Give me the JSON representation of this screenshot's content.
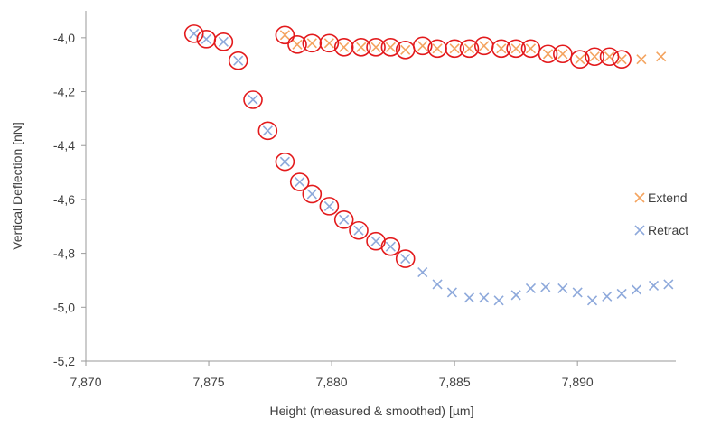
{
  "chart_data": {
    "type": "scatter",
    "xlabel": "Height (measured & smoothed) [µm]",
    "ylabel": "Vertical Deflection [nN]",
    "xlim": [
      7.87,
      7.894
    ],
    "ylim": [
      -5.2,
      -3.9
    ],
    "x_ticks": [
      7.87,
      7.875,
      7.88,
      7.885,
      7.89
    ],
    "x_tick_labels": [
      "7,870",
      "7,875",
      "7,880",
      "7,885",
      "7,890"
    ],
    "y_ticks": [
      -4.0,
      -4.2,
      -4.4,
      -4.6,
      -4.8,
      -5.0,
      -5.2
    ],
    "y_tick_labels": [
      "-4,0",
      "-4,2",
      "-4,4",
      "-4,6",
      "-4,8",
      "-5,0",
      "-5,2"
    ],
    "legend_position": "right",
    "grid": false,
    "series": [
      {
        "name": "Extend",
        "marker": "x",
        "color": "#F4A460",
        "points": [
          [
            7.8781,
            -3.99
          ],
          [
            7.8786,
            -4.025
          ],
          [
            7.8792,
            -4.02
          ],
          [
            7.8799,
            -4.02
          ],
          [
            7.8805,
            -4.035
          ],
          [
            7.8812,
            -4.035
          ],
          [
            7.8818,
            -4.035
          ],
          [
            7.8824,
            -4.035
          ],
          [
            7.883,
            -4.045
          ],
          [
            7.8837,
            -4.03
          ],
          [
            7.8843,
            -4.04
          ],
          [
            7.885,
            -4.04
          ],
          [
            7.8856,
            -4.04
          ],
          [
            7.8862,
            -4.03
          ],
          [
            7.8869,
            -4.04
          ],
          [
            7.8875,
            -4.04
          ],
          [
            7.8881,
            -4.04
          ],
          [
            7.8888,
            -4.06
          ],
          [
            7.8894,
            -4.06
          ],
          [
            7.8901,
            -4.08
          ],
          [
            7.8907,
            -4.07
          ],
          [
            7.8913,
            -4.07
          ],
          [
            7.8918,
            -4.08
          ],
          [
            7.8926,
            -4.08
          ],
          [
            7.8934,
            -4.07
          ]
        ]
      },
      {
        "name": "Retract",
        "marker": "x",
        "color": "#8EA9DB",
        "points": [
          [
            7.8744,
            -3.985
          ],
          [
            7.8749,
            -4.005
          ],
          [
            7.8756,
            -4.015
          ],
          [
            7.8762,
            -4.085
          ],
          [
            7.8768,
            -4.23
          ],
          [
            7.8774,
            -4.345
          ],
          [
            7.8781,
            -4.46
          ],
          [
            7.8787,
            -4.535
          ],
          [
            7.8792,
            -4.58
          ],
          [
            7.8799,
            -4.625
          ],
          [
            7.8805,
            -4.675
          ],
          [
            7.8811,
            -4.715
          ],
          [
            7.8818,
            -4.755
          ],
          [
            7.8824,
            -4.775
          ],
          [
            7.883,
            -4.82
          ],
          [
            7.8837,
            -4.87
          ],
          [
            7.8843,
            -4.915
          ],
          [
            7.8849,
            -4.945
          ],
          [
            7.8856,
            -4.965
          ],
          [
            7.8862,
            -4.965
          ],
          [
            7.8868,
            -4.975
          ],
          [
            7.8875,
            -4.955
          ],
          [
            7.8881,
            -4.93
          ],
          [
            7.8887,
            -4.925
          ],
          [
            7.8894,
            -4.93
          ],
          [
            7.89,
            -4.945
          ],
          [
            7.8906,
            -4.975
          ],
          [
            7.8912,
            -4.96
          ],
          [
            7.8918,
            -4.95
          ],
          [
            7.8924,
            -4.935
          ],
          [
            7.8931,
            -4.92
          ],
          [
            7.8937,
            -4.915
          ]
        ]
      }
    ],
    "highlight_circles": {
      "color": "#E31A1C",
      "points": [
        [
          7.8744,
          -3.985
        ],
        [
          7.8749,
          -4.005
        ],
        [
          7.8756,
          -4.015
        ],
        [
          7.8762,
          -4.085
        ],
        [
          7.8768,
          -4.23
        ],
        [
          7.8774,
          -4.345
        ],
        [
          7.8781,
          -4.46
        ],
        [
          7.8787,
          -4.535
        ],
        [
          7.8792,
          -4.58
        ],
        [
          7.8799,
          -4.625
        ],
        [
          7.8805,
          -4.675
        ],
        [
          7.8811,
          -4.715
        ],
        [
          7.8818,
          -4.755
        ],
        [
          7.8824,
          -4.775
        ],
        [
          7.883,
          -4.82
        ],
        [
          7.8781,
          -3.99
        ],
        [
          7.8786,
          -4.025
        ],
        [
          7.8792,
          -4.02
        ],
        [
          7.8799,
          -4.02
        ],
        [
          7.8805,
          -4.035
        ],
        [
          7.8812,
          -4.035
        ],
        [
          7.8818,
          -4.035
        ],
        [
          7.8824,
          -4.035
        ],
        [
          7.883,
          -4.045
        ],
        [
          7.8837,
          -4.03
        ],
        [
          7.8843,
          -4.04
        ],
        [
          7.885,
          -4.04
        ],
        [
          7.8856,
          -4.04
        ],
        [
          7.8862,
          -4.03
        ],
        [
          7.8869,
          -4.04
        ],
        [
          7.8875,
          -4.04
        ],
        [
          7.8881,
          -4.04
        ],
        [
          7.8888,
          -4.06
        ],
        [
          7.8894,
          -4.06
        ],
        [
          7.8901,
          -4.08
        ],
        [
          7.8907,
          -4.07
        ],
        [
          7.8913,
          -4.07
        ],
        [
          7.8918,
          -4.08
        ]
      ]
    }
  }
}
